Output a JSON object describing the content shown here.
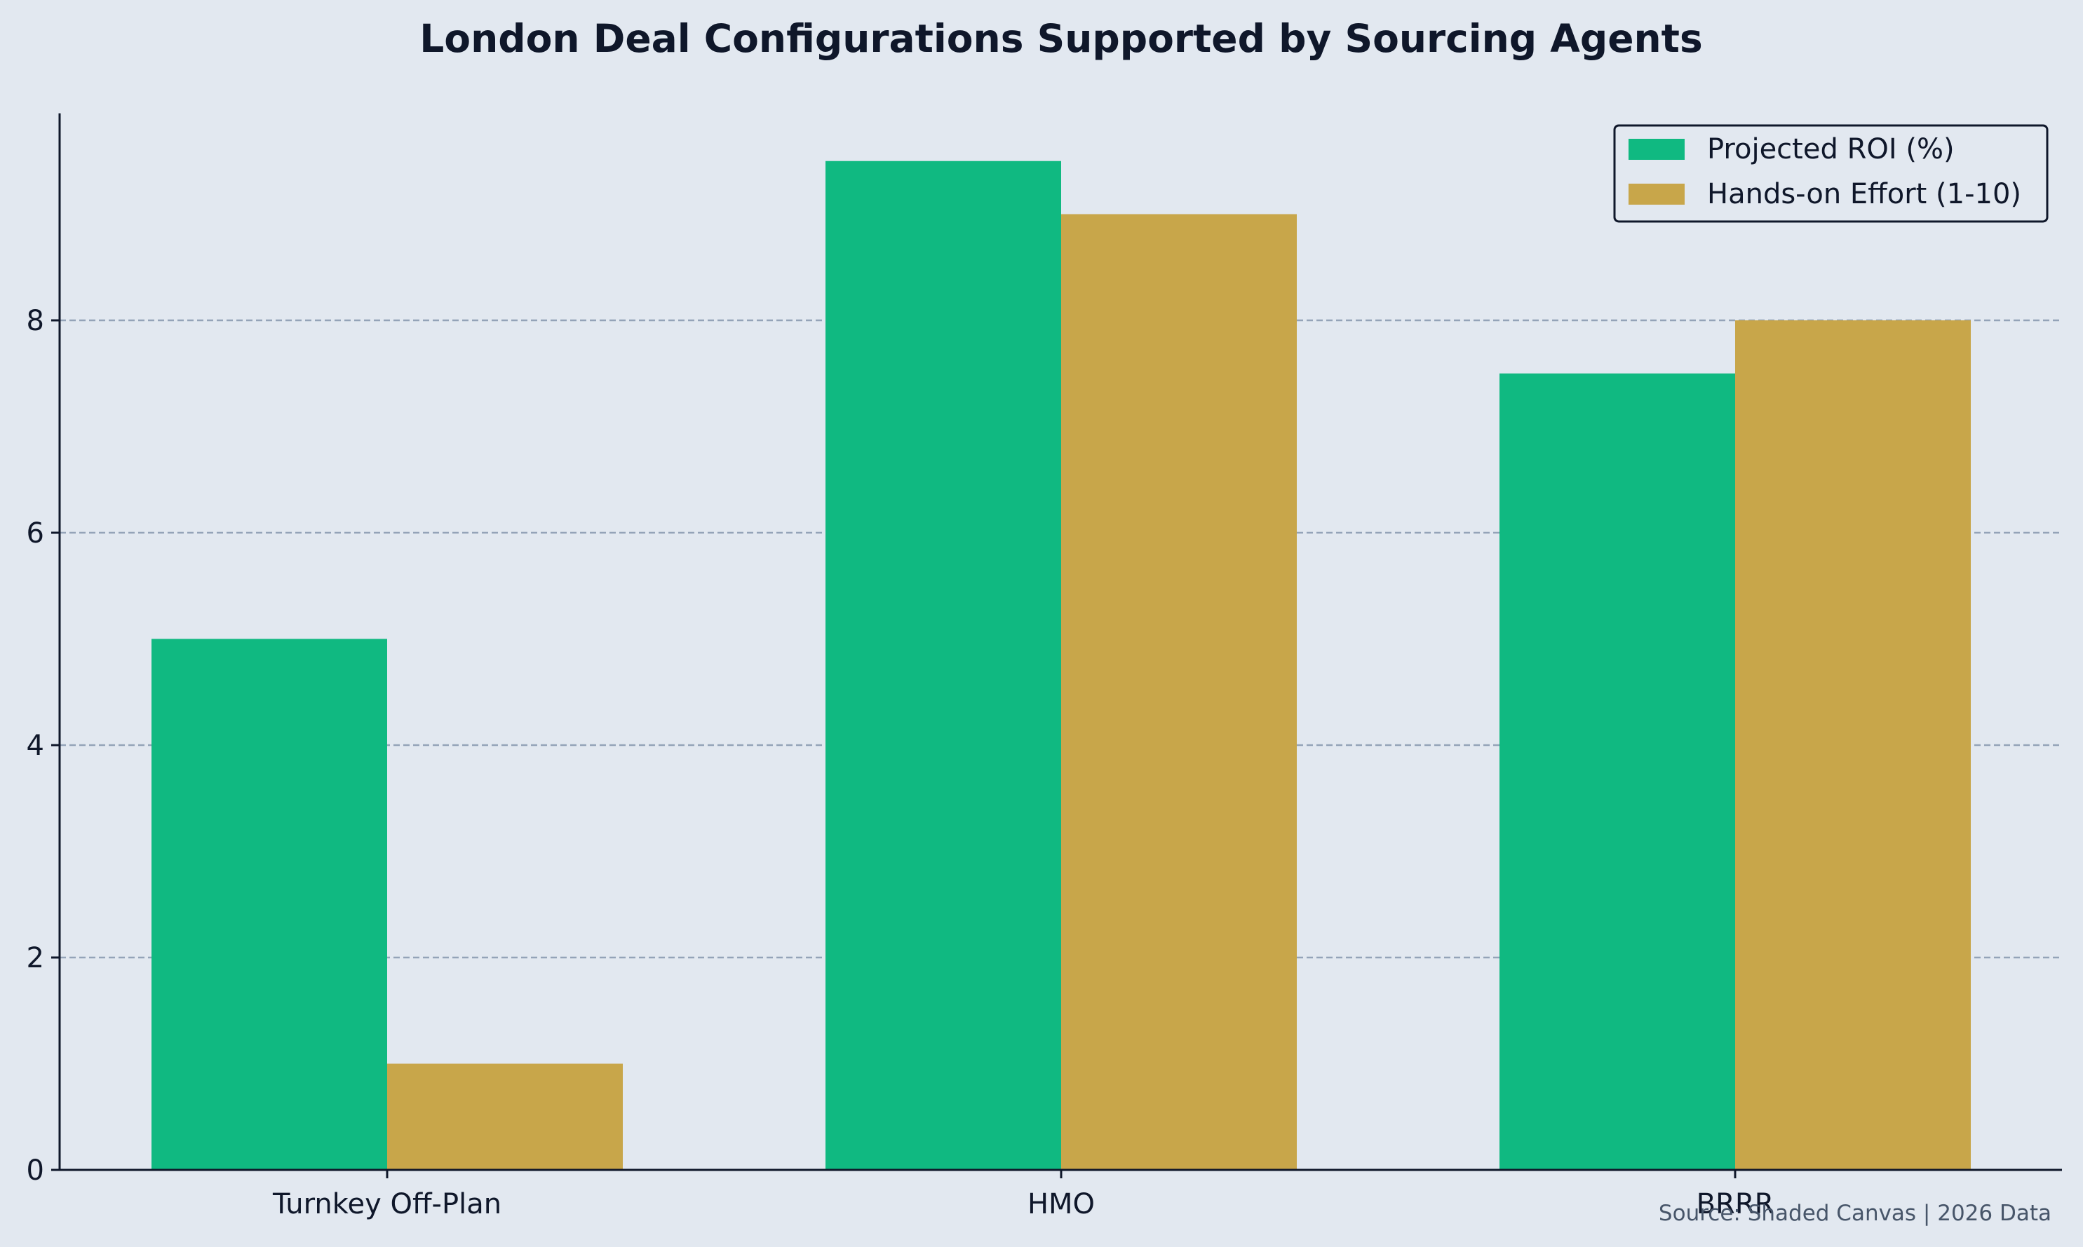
{
  "chart_data": {
    "type": "bar",
    "title": "London Deal Configurations Supported by Sourcing Agents",
    "xlabel": "",
    "ylabel": "",
    "categories": [
      "Turnkey Off-Plan",
      "HMO",
      "BRRR"
    ],
    "series": [
      {
        "name": "Projected ROI (%)",
        "values": [
          5,
          9.5,
          7.5
        ],
        "color": "#10b981"
      },
      {
        "name": "Hands-on Effort (1-10)",
        "values": [
          1,
          9,
          8
        ],
        "color": "#c8a64a"
      }
    ],
    "ylim": [
      0,
      9.95
    ],
    "yticks": [
      0,
      2,
      4,
      6,
      8
    ],
    "grid": "y-dashed",
    "legend_position": "top-right",
    "annotation": "Source: Shaded Canvas | 2026 Data"
  },
  "colors": {
    "background": "#e2e8f0",
    "axis": "#0f172a",
    "grid": "#94a3b8"
  }
}
